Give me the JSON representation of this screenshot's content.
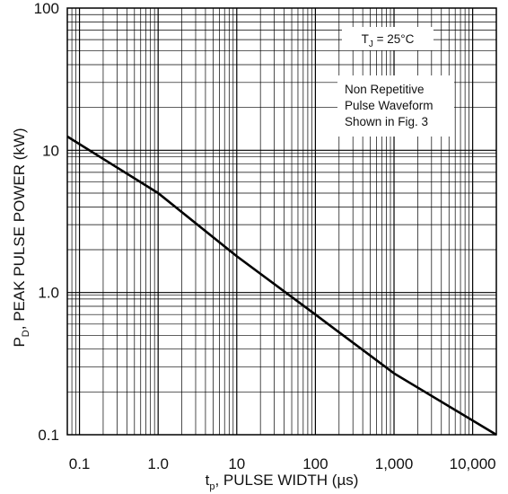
{
  "chart_data": {
    "type": "line",
    "x_scale": "log",
    "y_scale": "log",
    "xlim": [
      0.07,
      20000
    ],
    "ylim": [
      0.1,
      100
    ],
    "grid": true,
    "x_ticks": [
      {
        "value": 0.1,
        "label": "0.1"
      },
      {
        "value": 1,
        "label": "1.0"
      },
      {
        "value": 10,
        "label": "10"
      },
      {
        "value": 100,
        "label": "100"
      },
      {
        "value": 1000,
        "label": "1,000"
      },
      {
        "value": 10000,
        "label": "10,000"
      }
    ],
    "y_ticks": [
      {
        "value": 0.1,
        "label": "0.1"
      },
      {
        "value": 1,
        "label": "1.0"
      },
      {
        "value": 10,
        "label": "10"
      },
      {
        "value": 100,
        "label": "100"
      }
    ],
    "xlabel": {
      "sym": "t",
      "sub": "p",
      "rest": ", PULSE WIDTH (µs)"
    },
    "ylabel": {
      "sym": "P",
      "sub": "D",
      "rest": ", PEAK PULSE POWER (kW)"
    },
    "annotations": {
      "temp": {
        "sym": "T",
        "sub": "J",
        "rest": " = 25°C"
      },
      "note_lines": [
        "Non Repetitive",
        "Pulse Waveform",
        "Shown in Fig. 3"
      ]
    },
    "series": [
      {
        "x": [
          0.07,
          1,
          10,
          100,
          1000,
          20000
        ],
        "y": [
          12.5,
          5.0,
          1.8,
          0.7,
          0.27,
          0.1
        ]
      }
    ]
  }
}
